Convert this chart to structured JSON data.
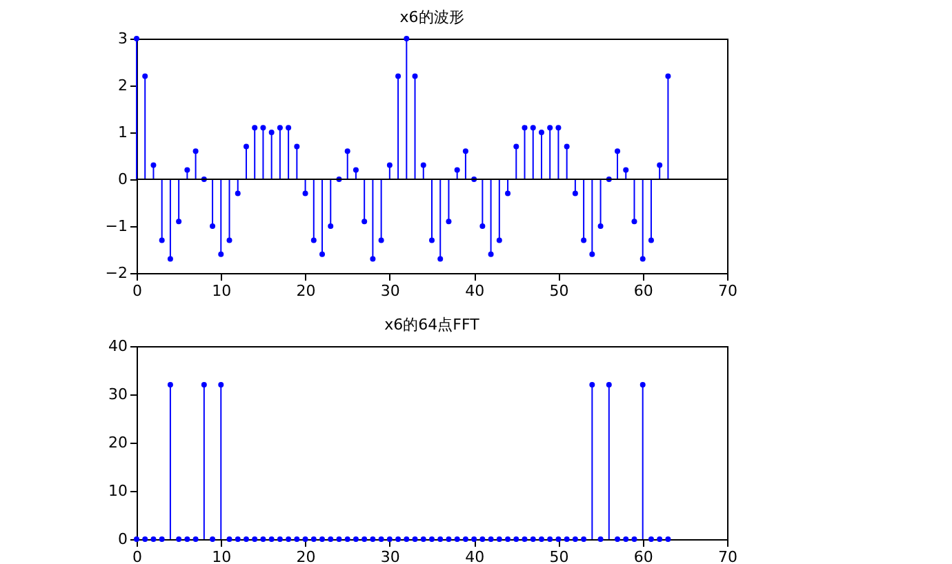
{
  "chart_data": [
    {
      "type": "lollipop",
      "title": "x6的波形",
      "x": [
        0,
        1,
        2,
        3,
        4,
        5,
        6,
        7,
        8,
        9,
        10,
        11,
        12,
        13,
        14,
        15,
        16,
        17,
        18,
        19,
        20,
        21,
        22,
        23,
        24,
        25,
        26,
        27,
        28,
        29,
        30,
        31,
        32,
        33,
        34,
        35,
        36,
        37,
        38,
        39,
        40,
        41,
        42,
        43,
        44,
        45,
        46,
        47,
        48,
        49,
        50,
        51,
        52,
        53,
        54,
        55,
        56,
        57,
        58,
        59,
        60,
        61,
        62,
        63
      ],
      "series": [
        {
          "color": "#0000ff",
          "values": [
            3,
            2.2,
            0.3,
            -1.3,
            -1.7,
            -0.9,
            0.2,
            0.6,
            0,
            -1.0,
            -1.6,
            -1.3,
            -0.3,
            0.7,
            1.1,
            1.1,
            1.0,
            1.1,
            1.1,
            0.7,
            -0.3,
            -1.3,
            -1.6,
            -1.0,
            0,
            0.6,
            0.2,
            -0.9,
            -1.7,
            -1.3,
            0.3,
            2.2,
            3,
            2.2,
            0.3,
            -1.3,
            -1.7,
            -0.9,
            0.2,
            0.6,
            0,
            -1.0,
            -1.6,
            -1.3,
            -0.3,
            0.7,
            1.1,
            1.1,
            1.0,
            1.1,
            1.1,
            0.7,
            -0.3,
            -1.3,
            -1.6,
            -1.0,
            0,
            0.6,
            0.2,
            -0.9,
            -1.7,
            -1.3,
            0.3,
            2.2
          ]
        }
      ],
      "xlim": [
        0,
        70
      ],
      "xticks": [
        0,
        10,
        20,
        30,
        40,
        50,
        60,
        70
      ],
      "ylim": [
        -2,
        3
      ],
      "yticks": [
        -2,
        -1,
        0,
        1,
        2,
        3
      ],
      "marker": "circle",
      "ref_lines": [
        {
          "axis": "y",
          "value": 0,
          "color": "#000000"
        }
      ]
    },
    {
      "type": "lollipop",
      "title": "x6的64点FFT",
      "x": [
        0,
        1,
        2,
        3,
        4,
        5,
        6,
        7,
        8,
        9,
        10,
        11,
        12,
        13,
        14,
        15,
        16,
        17,
        18,
        19,
        20,
        21,
        22,
        23,
        24,
        25,
        26,
        27,
        28,
        29,
        30,
        31,
        32,
        33,
        34,
        35,
        36,
        37,
        38,
        39,
        40,
        41,
        42,
        43,
        44,
        45,
        46,
        47,
        48,
        49,
        50,
        51,
        52,
        53,
        54,
        55,
        56,
        57,
        58,
        59,
        60,
        61,
        62,
        63
      ],
      "series": [
        {
          "color": "#0000ff",
          "values": [
            0,
            0,
            0,
            0,
            32,
            0,
            0,
            0,
            32,
            0,
            32,
            0,
            0,
            0,
            0,
            0,
            0,
            0,
            0,
            0,
            0,
            0,
            0,
            0,
            0,
            0,
            0,
            0,
            0,
            0,
            0,
            0,
            0,
            0,
            0,
            0,
            0,
            0,
            0,
            0,
            0,
            0,
            0,
            0,
            0,
            0,
            0,
            0,
            0,
            0,
            0,
            0,
            0,
            0,
            32,
            0,
            32,
            0,
            0,
            0,
            32,
            0,
            0,
            0
          ]
        }
      ],
      "xlim": [
        0,
        70
      ],
      "xticks": [
        0,
        10,
        20,
        30,
        40,
        50,
        60,
        70
      ],
      "ylim": [
        0,
        40
      ],
      "yticks": [
        0,
        10,
        20,
        30,
        40
      ],
      "marker": "circle"
    }
  ]
}
